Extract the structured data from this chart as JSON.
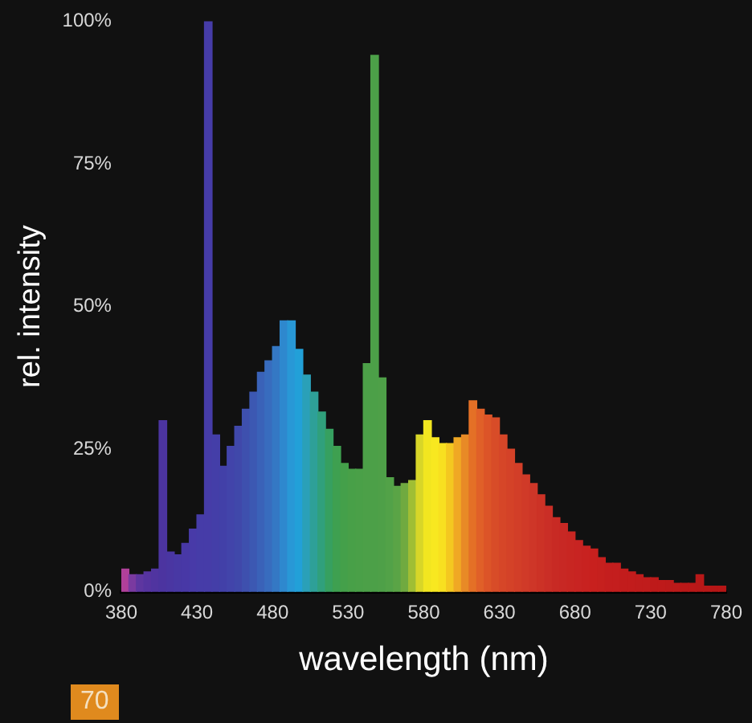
{
  "chart_data": {
    "type": "histogram",
    "xlabel": "wavelength (nm)",
    "ylabel": "rel. intensity",
    "bins": [
      380,
      385,
      390,
      395,
      400,
      405,
      410,
      415,
      420,
      425,
      430,
      435,
      440,
      445,
      450,
      455,
      460,
      465,
      470,
      475,
      480,
      485,
      490,
      495,
      500,
      505,
      510,
      515,
      520,
      525,
      530,
      535,
      540,
      545,
      550,
      555,
      560,
      565,
      570,
      575,
      580,
      585,
      590,
      595,
      600,
      605,
      610,
      615,
      620,
      625,
      630,
      635,
      640,
      645,
      650,
      655,
      660,
      665,
      670,
      675,
      680,
      685,
      690,
      695,
      700,
      705,
      710,
      715,
      720,
      725,
      730,
      735,
      740,
      745,
      750,
      755,
      760,
      765,
      770,
      775,
      780
    ],
    "values": [
      4,
      3,
      3,
      3.5,
      4,
      30,
      7,
      6.5,
      8.5,
      11,
      13.5,
      100,
      27.5,
      22,
      25.5,
      29,
      32,
      35,
      38.5,
      40.5,
      43,
      47.5,
      47.5,
      42.5,
      38,
      35,
      31.5,
      28.5,
      25.5,
      22.5,
      21.5,
      21.5,
      40,
      94,
      37.5,
      20,
      18.5,
      19,
      19.5,
      27.5,
      30,
      27,
      26,
      26,
      27,
      27.5,
      33.5,
      32,
      31,
      30.5,
      27.5,
      25,
      22.5,
      20.5,
      19,
      17,
      15,
      13,
      12,
      10.5,
      9,
      8,
      7.5,
      6,
      5,
      5,
      4,
      3.5,
      3,
      2.5,
      2.5,
      2,
      2,
      1.5,
      1.5,
      1.5,
      3,
      1,
      1,
      1
    ],
    "colors": [
      "#b0409a",
      "#7a3aa0",
      "#5e36a0",
      "#5634a0",
      "#5034a0",
      "#4c34a0",
      "#4a36a2",
      "#4838a4",
      "#4838a6",
      "#483aa8",
      "#463ca8",
      "#463ca8",
      "#443ea8",
      "#4240a8",
      "#4244aa",
      "#4048aa",
      "#3e50ae",
      "#3c58b2",
      "#3a62b8",
      "#386cbe",
      "#3478c4",
      "#2e88ce",
      "#2898d6",
      "#22a0d8",
      "#2aa0b8",
      "#2ea098",
      "#30a07c",
      "#36a060",
      "#3ea050",
      "#44a04a",
      "#48a048",
      "#4aa048",
      "#4ca048",
      "#4ca048",
      "#4ea048",
      "#52a248",
      "#5aa446",
      "#70aa40",
      "#a0be34",
      "#d8d628",
      "#f2e620",
      "#f8e820",
      "#f8e020",
      "#f4c820",
      "#f0a824",
      "#e88a26",
      "#e47026",
      "#e06028",
      "#dc5428",
      "#d84c28",
      "#d64628",
      "#d44228",
      "#d23e28",
      "#d03a28",
      "#ce3628",
      "#cc3226",
      "#ca2e26",
      "#c82a24",
      "#c82824",
      "#c82622",
      "#c82422",
      "#c82220",
      "#c8201e",
      "#c6201e",
      "#c41e1e",
      "#c41e1e",
      "#c21c1c",
      "#c21c1c",
      "#c01c1c",
      "#c01c1c",
      "#be1a1a",
      "#be1a1a",
      "#bc1a1a",
      "#bc1a1a",
      "#ba1818",
      "#ba1818",
      "#b81818",
      "#b81818",
      "#b61616",
      "#b61616"
    ],
    "xlim": [
      380,
      780
    ],
    "xticks": [
      380,
      430,
      480,
      530,
      580,
      630,
      680,
      730,
      780
    ],
    "ylim": [
      0,
      100
    ],
    "yticks": [
      {
        "value": 0,
        "label": "0%"
      },
      {
        "value": 25,
        "label": "25%"
      },
      {
        "value": 50,
        "label": "50%"
      },
      {
        "value": 75,
        "label": "75%"
      },
      {
        "value": 100,
        "label": "100%"
      }
    ],
    "annotations": [
      "70"
    ]
  }
}
